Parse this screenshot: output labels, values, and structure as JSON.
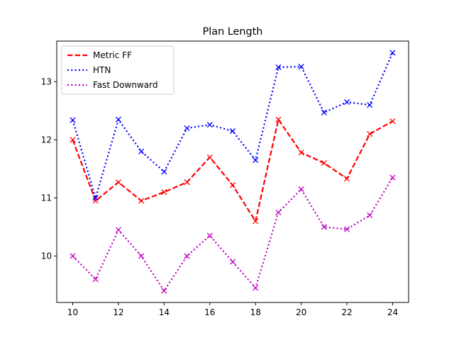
{
  "chart_data": {
    "type": "line",
    "title": "Plan Length",
    "xlabel": "",
    "ylabel": "",
    "xlim": [
      9.3,
      24.7
    ],
    "ylim": [
      9.2,
      13.7
    ],
    "xticks": [
      10,
      12,
      14,
      16,
      18,
      20,
      22,
      24
    ],
    "yticks": [
      10,
      11,
      12,
      13
    ],
    "grid": false,
    "legend_position": "top-left",
    "x": [
      10,
      11,
      12,
      13,
      14,
      15,
      16,
      17,
      18,
      19,
      20,
      21,
      22,
      23,
      24
    ],
    "series": [
      {
        "name": "Metric FF",
        "color": "#ff0000",
        "line_style": "dashed",
        "marker": "x",
        "values": [
          12.0,
          10.95,
          11.27,
          10.95,
          11.1,
          11.27,
          11.7,
          11.22,
          10.6,
          12.35,
          11.78,
          11.6,
          11.33,
          12.1,
          12.32
        ]
      },
      {
        "name": "HTN",
        "color": "#0000ff",
        "line_style": "dotted",
        "marker": "x",
        "values": [
          12.34,
          11.0,
          12.35,
          11.8,
          11.45,
          12.2,
          12.26,
          12.15,
          11.65,
          13.25,
          13.26,
          12.47,
          12.65,
          12.6,
          13.5
        ]
      },
      {
        "name": "Fast Downward",
        "color": "#bf00bf",
        "line_style": "dotted",
        "marker": "x",
        "values": [
          10.0,
          9.6,
          10.45,
          10.0,
          9.4,
          10.0,
          10.35,
          9.9,
          9.45,
          10.75,
          11.15,
          10.5,
          10.46,
          10.7,
          11.35
        ]
      }
    ]
  }
}
